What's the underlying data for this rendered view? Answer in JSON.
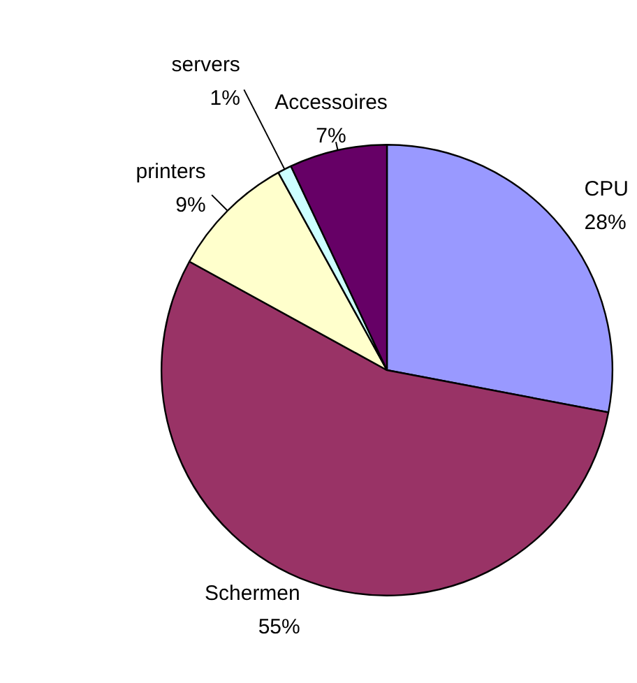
{
  "chart_data": {
    "type": "pie",
    "categories": [
      "CPU",
      "Schermen",
      "printers",
      "servers",
      "Accessoires"
    ],
    "values": [
      28,
      55,
      9,
      1,
      7
    ],
    "value_labels": [
      "28%",
      "55%",
      "9%",
      "1%",
      "7%"
    ],
    "colors": [
      "#9999ff",
      "#993366",
      "#ffffcc",
      "#ccffff",
      "#660066"
    ],
    "legend": false
  }
}
